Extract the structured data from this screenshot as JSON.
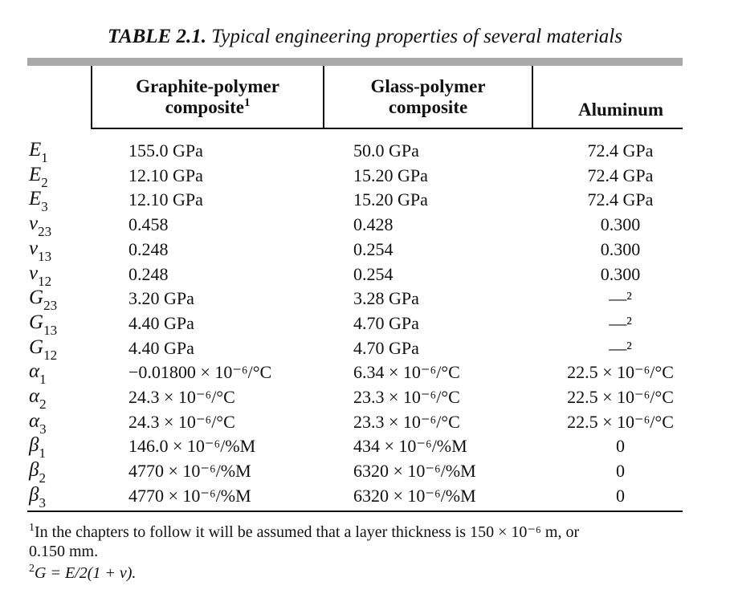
{
  "caption": {
    "label": "TABLE 2.1.",
    "text": "Typical engineering properties of several materials"
  },
  "header": {
    "col1_line1": "Graphite-polymer",
    "col1_line2": "composite",
    "col1_mark": "1",
    "col2_line1": "Glass-polymer",
    "col2_line2": "composite",
    "col3": "Aluminum"
  },
  "rows": [
    {
      "sym": "E",
      "sub": "1",
      "c1": "155.0 GPa",
      "c2": "50.0 GPa",
      "c3": "72.4 GPa"
    },
    {
      "sym": "E",
      "sub": "2",
      "c1": "12.10 GPa",
      "c2": "15.20 GPa",
      "c3": "72.4 GPa"
    },
    {
      "sym": "E",
      "sub": "3",
      "c1": "12.10 GPa",
      "c2": "15.20 GPa",
      "c3": "72.4 GPa"
    },
    {
      "sym": "ν",
      "sub": "23",
      "c1": "0.458",
      "c2": "0.428",
      "c3": "0.300"
    },
    {
      "sym": "ν",
      "sub": "13",
      "c1": "0.248",
      "c2": "0.254",
      "c3": "0.300"
    },
    {
      "sym": "ν",
      "sub": "12",
      "c1": "0.248",
      "c2": "0.254",
      "c3": "0.300"
    },
    {
      "sym": "G",
      "sub": "23",
      "c1": "3.20 GPa",
      "c2": "3.28 GPa",
      "c3": "—²"
    },
    {
      "sym": "G",
      "sub": "13",
      "c1": "4.40 GPa",
      "c2": "4.70 GPa",
      "c3": "—²"
    },
    {
      "sym": "G",
      "sub": "12",
      "c1": "4.40 GPa",
      "c2": "4.70 GPa",
      "c3": "—²"
    },
    {
      "sym": "α",
      "sub": "1",
      "c1": "−0.01800 × 10⁻⁶/°C",
      "c2": "6.34 × 10⁻⁶/°C",
      "c3": "22.5 × 10⁻⁶/°C"
    },
    {
      "sym": "α",
      "sub": "2",
      "c1": "24.3 × 10⁻⁶/°C",
      "c2": "23.3 × 10⁻⁶/°C",
      "c3": "22.5 × 10⁻⁶/°C"
    },
    {
      "sym": "α",
      "sub": "3",
      "c1": "24.3 × 10⁻⁶/°C",
      "c2": "23.3 × 10⁻⁶/°C",
      "c3": "22.5 × 10⁻⁶/°C"
    },
    {
      "sym": "β",
      "sub": "1",
      "c1": "146.0 × 10⁻⁶/%M",
      "c2": "434 × 10⁻⁶/%M",
      "c3": "0"
    },
    {
      "sym": "β",
      "sub": "2",
      "c1": "4770 × 10⁻⁶/%M",
      "c2": "6320 × 10⁻⁶/%M",
      "c3": "0"
    },
    {
      "sym": "β",
      "sub": "3",
      "c1": "4770 × 10⁻⁶/%M",
      "c2": "6320 × 10⁻⁶/%M",
      "c3": "0"
    }
  ],
  "footnotes": {
    "fn1_mark": "1",
    "fn1_line1": "In the chapters to follow it will be assumed that a layer thickness is 150 × 10⁻⁶ m, or",
    "fn1_line2": "0.150 mm.",
    "fn2_mark": "2",
    "fn2_text": "G = E/2(1 + ν)."
  }
}
